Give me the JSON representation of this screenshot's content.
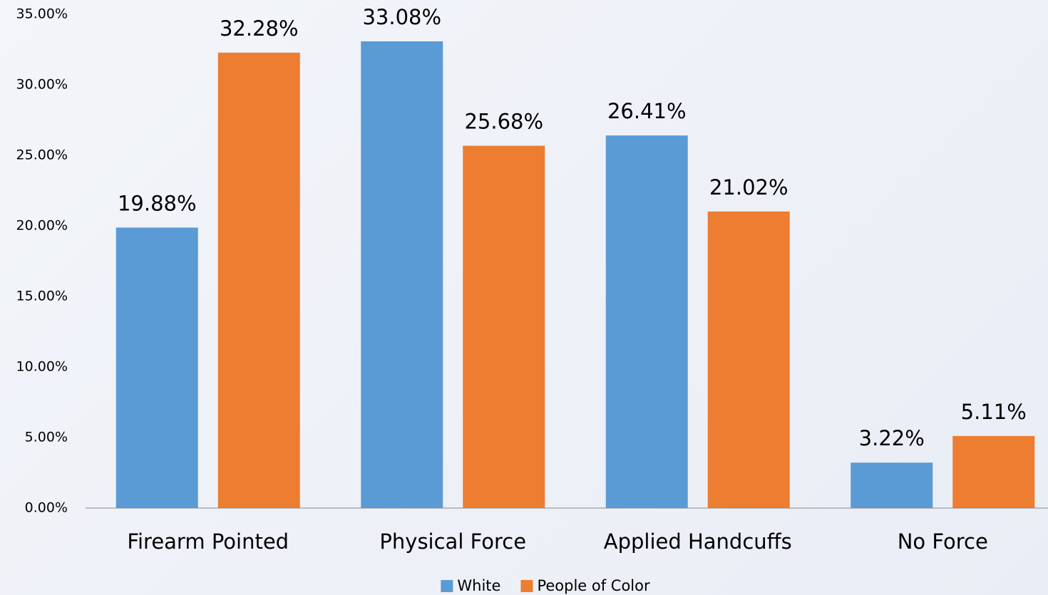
{
  "chart_data": {
    "type": "bar",
    "categories": [
      "Firearm Pointed",
      "Physical Force",
      "Applied Handcuffs",
      "No Force"
    ],
    "series": [
      {
        "name": "White",
        "color": "#5b9bd5",
        "values": [
          19.88,
          33.08,
          26.41,
          3.22
        ],
        "value_labels": [
          "19.88%",
          "33.08%",
          "26.41%",
          "3.22%"
        ]
      },
      {
        "name": "People of Color",
        "color": "#ed7d31",
        "values": [
          32.28,
          25.68,
          21.02,
          5.11
        ],
        "value_labels": [
          "32.28%",
          "25.68%",
          "21.02%",
          "5.11%"
        ]
      }
    ],
    "ylim": [
      0,
      35
    ],
    "yticks": [
      {
        "value": 0,
        "label": "0.00%"
      },
      {
        "value": 5,
        "label": "5.00%"
      },
      {
        "value": 10,
        "label": "10.00%"
      },
      {
        "value": 15,
        "label": "15.00%"
      },
      {
        "value": 20,
        "label": "20.00%"
      },
      {
        "value": 25,
        "label": "25.00%"
      },
      {
        "value": 30,
        "label": "30.00%"
      },
      {
        "value": 35,
        "label": "35.00%"
      }
    ],
    "grid": false,
    "legend": "bottom"
  }
}
